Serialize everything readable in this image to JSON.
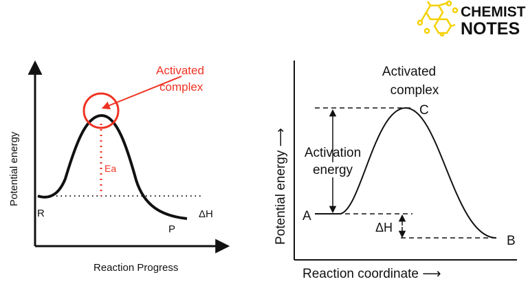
{
  "logo": {
    "line1": "CHEMIST",
    "line2": "NOTES",
    "color": "#f5d000"
  },
  "left_diagram": {
    "y_axis_label": "Potential energy",
    "x_axis_label": "Reaction Progress",
    "annotation": {
      "line1": "Activated",
      "line2": "complex"
    },
    "ea_label": "Ea",
    "reactant_label": "R",
    "product_label": "P",
    "enthalpy_label": "ΔH",
    "accent_color": "#ee3322"
  },
  "right_diagram": {
    "y_axis_label": "Potential energy ⟶",
    "x_axis_label": "Reaction coordinate ⟶",
    "annotation": {
      "line1": "Activated",
      "line2": "complex"
    },
    "activation": {
      "line1": "Activation",
      "line2": "energy"
    },
    "point_a": "A",
    "point_b": "B",
    "point_c": "C",
    "enthalpy_label": "ΔH"
  }
}
